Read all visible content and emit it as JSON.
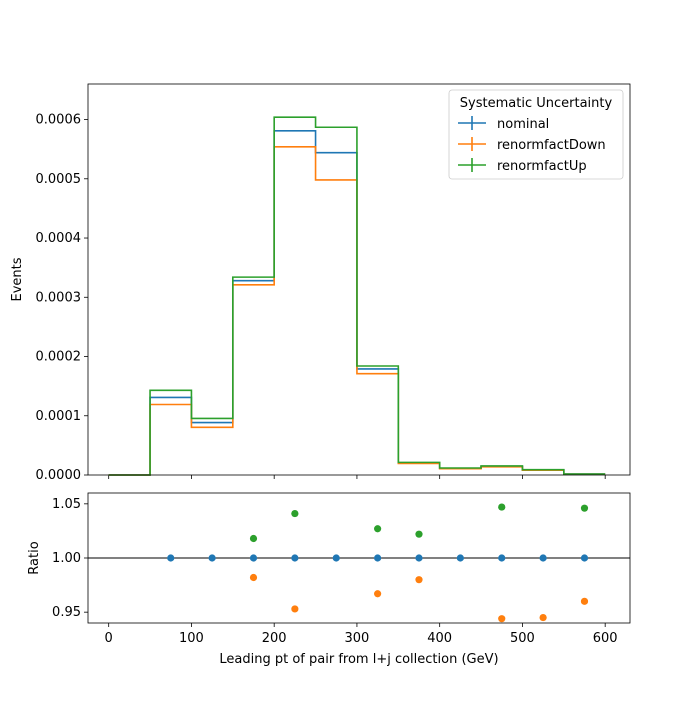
{
  "chart_data": [
    {
      "type": "line",
      "drawstyle": "steps",
      "xlim": [
        -25,
        630
      ],
      "ylim": [
        0,
        0.00066
      ],
      "ylabel": "Events",
      "yticks": [
        0,
        0.0001,
        0.0002,
        0.0003,
        0.0004,
        0.0005,
        0.0006
      ],
      "ytick_labels": [
        "0.0000",
        "0.0001",
        "0.0002",
        "0.0003",
        "0.0004",
        "0.0005",
        "0.0006"
      ],
      "xticks": [
        0,
        100,
        200,
        300,
        400,
        500,
        600
      ],
      "bin_edges": [
        0,
        50,
        100,
        150,
        200,
        250,
        300,
        350,
        400,
        450,
        500,
        550,
        600
      ],
      "legend": {
        "title": "Systematic Uncertainty",
        "placement": "top-right"
      },
      "series": [
        {
          "name": "nominal",
          "color": "#1f77b4",
          "values": [
            0,
            0.000131,
            8.85e-05,
            0.000328,
            0.000581,
            0.000544,
            0.000179,
            2.05e-05,
            1.12e-05,
            1.45e-05,
            8.5e-06,
            1.5e-06
          ]
        },
        {
          "name": "renormfactDown",
          "color": "#ff7f0e",
          "values": [
            0,
            0.000119,
            8.05e-05,
            0.000321,
            0.000554,
            0.000498,
            0.000171,
            1.95e-05,
            1.06e-05,
            1.37e-05,
            8e-06,
            1.4e-06
          ]
        },
        {
          "name": "renormfactUp",
          "color": "#2ca02c",
          "values": [
            0,
            0.000143,
            9.55e-05,
            0.000334,
            0.000604,
            0.000587,
            0.000184,
            2.13e-05,
            1.18e-05,
            1.53e-05,
            8.9e-06,
            1.6e-06
          ]
        }
      ]
    },
    {
      "type": "scatter",
      "xlim": [
        -25,
        630
      ],
      "ylim": [
        0.94,
        1.06
      ],
      "ylabel": "Ratio",
      "xlabel": "Leading pt of pair from l+j collection (GeV)",
      "yticks": [
        0.95,
        1.0,
        1.05
      ],
      "ytick_labels": [
        "0.95",
        "1.00",
        "1.05"
      ],
      "xticks": [
        0,
        100,
        200,
        300,
        400,
        500,
        600
      ],
      "xtick_labels": [
        "0",
        "100",
        "200",
        "300",
        "400",
        "500",
        "600"
      ],
      "reference_line": 1.0,
      "series": [
        {
          "name": "nominal",
          "color": "#1f77b4",
          "x": [
            75,
            125,
            175,
            225,
            275,
            325,
            375,
            425,
            475,
            525,
            575
          ],
          "y": [
            1.0,
            1.0,
            1.0,
            1.0,
            1.0,
            1.0,
            1.0,
            1.0,
            1.0,
            1.0,
            1.0
          ]
        },
        {
          "name": "renormfactDown",
          "color": "#ff7f0e",
          "x": [
            175,
            225,
            325,
            375,
            475,
            525,
            575
          ],
          "y": [
            0.982,
            0.953,
            0.967,
            0.98,
            0.944,
            0.945,
            0.96
          ]
        },
        {
          "name": "renormfactUp",
          "color": "#2ca02c",
          "x": [
            175,
            225,
            325,
            375,
            475,
            575
          ],
          "y": [
            1.018,
            1.041,
            1.027,
            1.022,
            1.047,
            1.046
          ]
        }
      ]
    }
  ]
}
